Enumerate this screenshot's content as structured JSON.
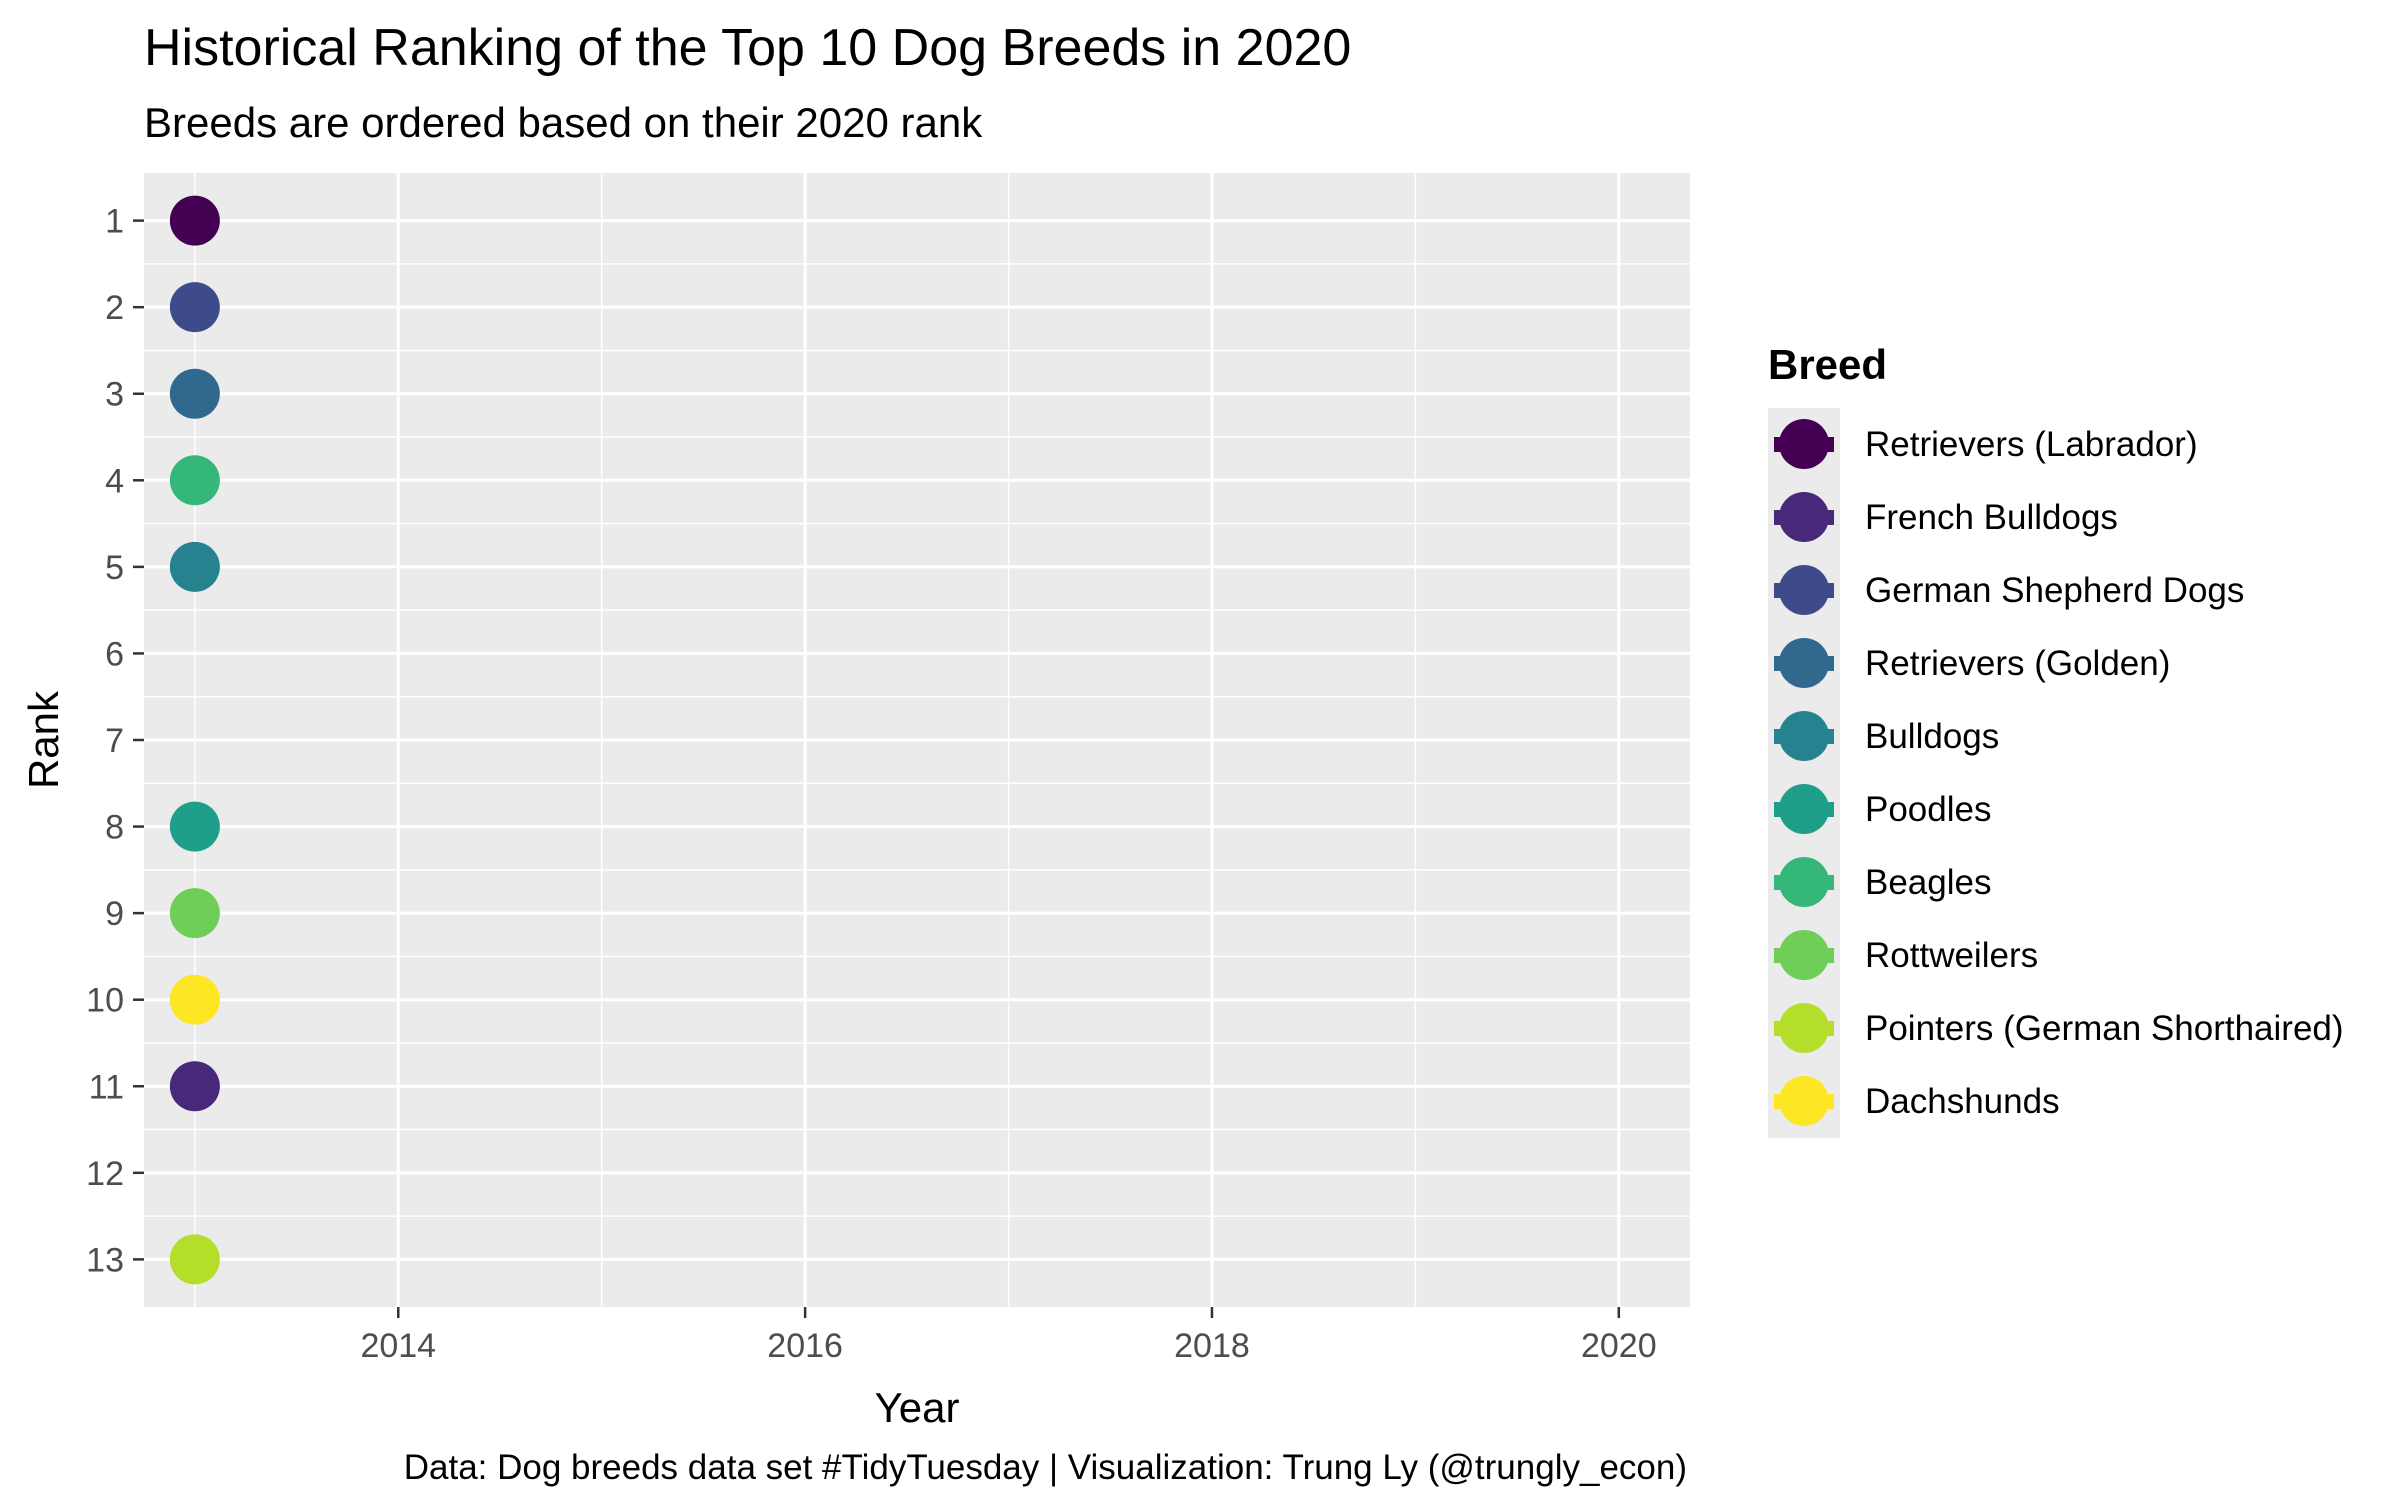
{
  "chart_data": {
    "type": "scatter",
    "title": "Historical Ranking of the Top 10 Dog Breeds in 2020",
    "subtitle": "Breeds are ordered based on their 2020 rank",
    "xlabel": "Year",
    "ylabel": "Rank",
    "caption": "Data: Dog breeds data set #TidyTuesday | Visualization: Trung Ly (@trungly_econ)",
    "xlim": [
      2012.75,
      2020.35
    ],
    "ylim": [
      0.45,
      13.55
    ],
    "y_reversed": true,
    "x_ticks": [
      2014,
      2016,
      2018,
      2020
    ],
    "y_ticks": [
      1,
      2,
      3,
      4,
      5,
      6,
      7,
      8,
      9,
      10,
      11,
      12,
      13
    ],
    "grid": true,
    "legend": {
      "title": "Breed",
      "position": "right"
    },
    "series": [
      {
        "name": "Retrievers (Labrador)",
        "color": "#440154",
        "points": [
          {
            "x": 2013,
            "y": 1
          }
        ]
      },
      {
        "name": "French Bulldogs",
        "color": "#482878",
        "points": [
          {
            "x": 2013,
            "y": 11
          }
        ]
      },
      {
        "name": "German Shepherd Dogs",
        "color": "#3e4a89",
        "points": [
          {
            "x": 2013,
            "y": 2
          }
        ]
      },
      {
        "name": "Retrievers (Golden)",
        "color": "#31688e",
        "points": [
          {
            "x": 2013,
            "y": 3
          }
        ]
      },
      {
        "name": "Bulldogs",
        "color": "#26828e",
        "points": [
          {
            "x": 2013,
            "y": 5
          }
        ]
      },
      {
        "name": "Poodles",
        "color": "#1f9e89",
        "points": [
          {
            "x": 2013,
            "y": 8
          }
        ]
      },
      {
        "name": "Beagles",
        "color": "#35b779",
        "points": [
          {
            "x": 2013,
            "y": 4
          }
        ]
      },
      {
        "name": "Rottweilers",
        "color": "#6ece58",
        "points": [
          {
            "x": 2013,
            "y": 9
          }
        ]
      },
      {
        "name": "Pointers (German Shorthaired)",
        "color": "#b5de2b",
        "points": [
          {
            "x": 2013,
            "y": 13
          }
        ]
      },
      {
        "name": "Dachshunds",
        "color": "#fde725",
        "points": [
          {
            "x": 2013,
            "y": 10
          }
        ]
      }
    ]
  }
}
